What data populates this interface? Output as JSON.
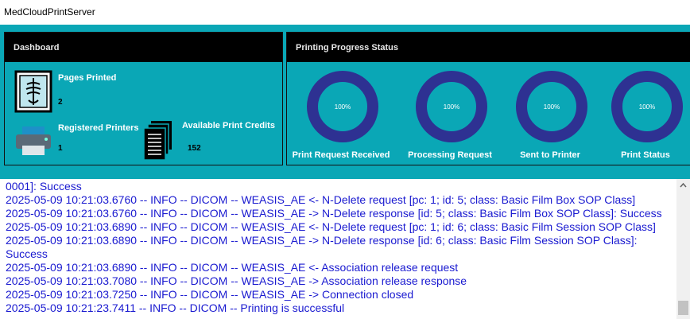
{
  "window_title": "MedCloudPrintServer",
  "dashboard": {
    "title": "Dashboard",
    "pages_printed": {
      "label": "Pages Printed",
      "value": 2
    },
    "registered_printers": {
      "label": "Registered Printers",
      "value": 1
    },
    "available_credits": {
      "label": "Available Print Credits",
      "value": 152
    }
  },
  "progress": {
    "title": "Printing Progress Status",
    "items": [
      {
        "label": "Print Request Received",
        "percent": "100%"
      },
      {
        "label": "Processing Request",
        "percent": "100%"
      },
      {
        "label": "Sent to Printer",
        "percent": "100%"
      },
      {
        "label": "Print Status",
        "percent": "100%"
      }
    ]
  },
  "log": [
    "0001]: Success",
    "2025-05-09 10:21:03.6760 -- INFO -- DICOM -- WEASIS_AE <- N-Delete request [pc: 1; id: 5; class: Basic Film Box SOP Class]",
    "2025-05-09 10:21:03.6760 -- INFO -- DICOM -- WEASIS_AE -> N-Delete response [id: 5; class: Basic Film Box SOP Class]: Success",
    "2025-05-09 10:21:03.6890 -- INFO -- DICOM -- WEASIS_AE <- N-Delete request [pc: 1; id: 6; class: Basic Film Session SOP Class]",
    "2025-05-09 10:21:03.6890 -- INFO -- DICOM -- WEASIS_AE -> N-Delete response [id: 6; class: Basic Film Session SOP Class]:",
    "Success",
    "2025-05-09 10:21:03.6890 -- INFO -- DICOM -- WEASIS_AE <- Association release request",
    "2025-05-09 10:21:03.7080 -- INFO -- DICOM -- WEASIS_AE -> Association release response",
    "2025-05-09 10:21:03.7250 -- INFO -- DICOM -- WEASIS_AE -> Connection closed",
    "2025-05-09 10:21:23.7411 -- INFO -- DICOM -- Printing is successful"
  ]
}
